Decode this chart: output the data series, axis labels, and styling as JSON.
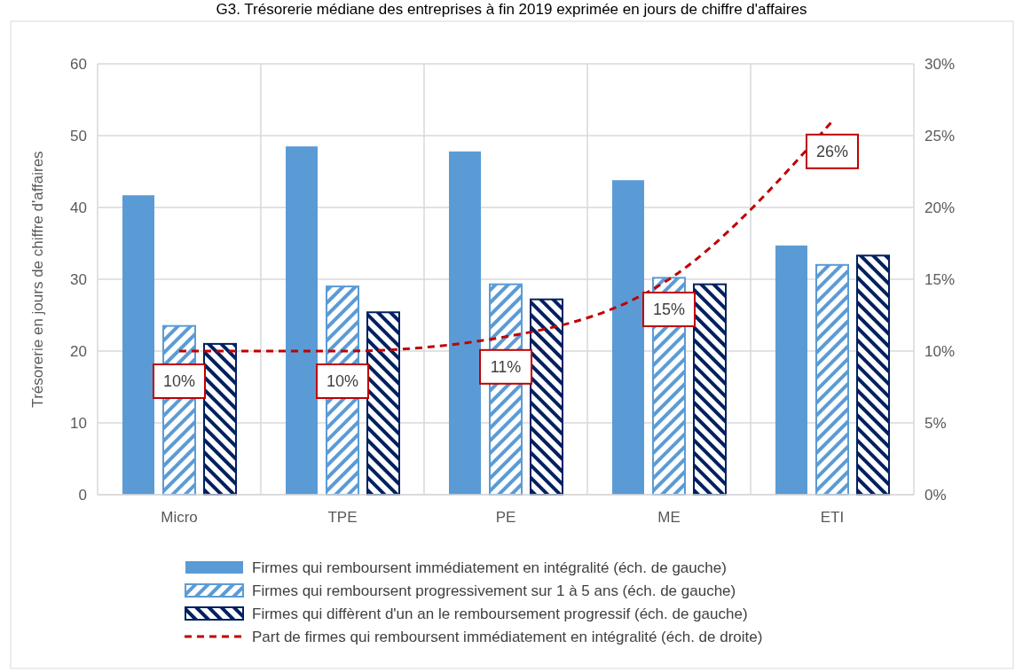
{
  "chart_data": {
    "type": "bar",
    "title": "G3. Trésorerie médiane des entreprises à fin 2019 exprimée en jours de chiffre d'affaires",
    "ylabel": "Trésorerie en jours de chiffre d'affaires",
    "categories": [
      "Micro",
      "TPE",
      "PE",
      "ME",
      "ETI"
    ],
    "series": [
      {
        "name": "Firmes qui remboursent immédiatement en intégralité (éch. de gauche)",
        "color": "#5b9bd5",
        "values": [
          41.7,
          48.5,
          47.8,
          43.8,
          34.7
        ]
      },
      {
        "name": "Firmes qui remboursent progressivement sur 1 à 5 ans (éch. de gauche)",
        "color": "#5b9bd5",
        "values": [
          23.5,
          29.0,
          29.3,
          30.2,
          32.0
        ]
      },
      {
        "name": "Firmes qui diffèrent d'un an le remboursement progressif (éch. de gauche)",
        "color": "#002060",
        "values": [
          21.0,
          25.4,
          27.2,
          29.3,
          33.3
        ]
      },
      {
        "name": "Part de firmes qui remboursent immédiatement en intégralité (éch. de droite)",
        "type": "line",
        "axis": "y2",
        "color": "#c00000",
        "line_style": "dashed",
        "values": [
          10,
          10,
          11,
          15,
          26
        ],
        "value_labels": [
          "10%",
          "10%",
          "11%",
          "15%",
          "26%"
        ]
      }
    ],
    "ylim": [
      0,
      60
    ],
    "yticks": [
      0,
      10,
      20,
      30,
      40,
      50,
      60
    ],
    "y2lim": [
      0,
      30
    ],
    "y2ticks": [
      {
        "value": 0,
        "label": "0%"
      },
      {
        "value": 5,
        "label": "5%"
      },
      {
        "value": 10,
        "label": "10%"
      },
      {
        "value": 15,
        "label": "15%"
      },
      {
        "value": 20,
        "label": "20%"
      },
      {
        "value": 25,
        "label": "25%"
      },
      {
        "value": 30,
        "label": "30%"
      }
    ],
    "grid": true,
    "legend": "bottom",
    "marker": "none"
  }
}
